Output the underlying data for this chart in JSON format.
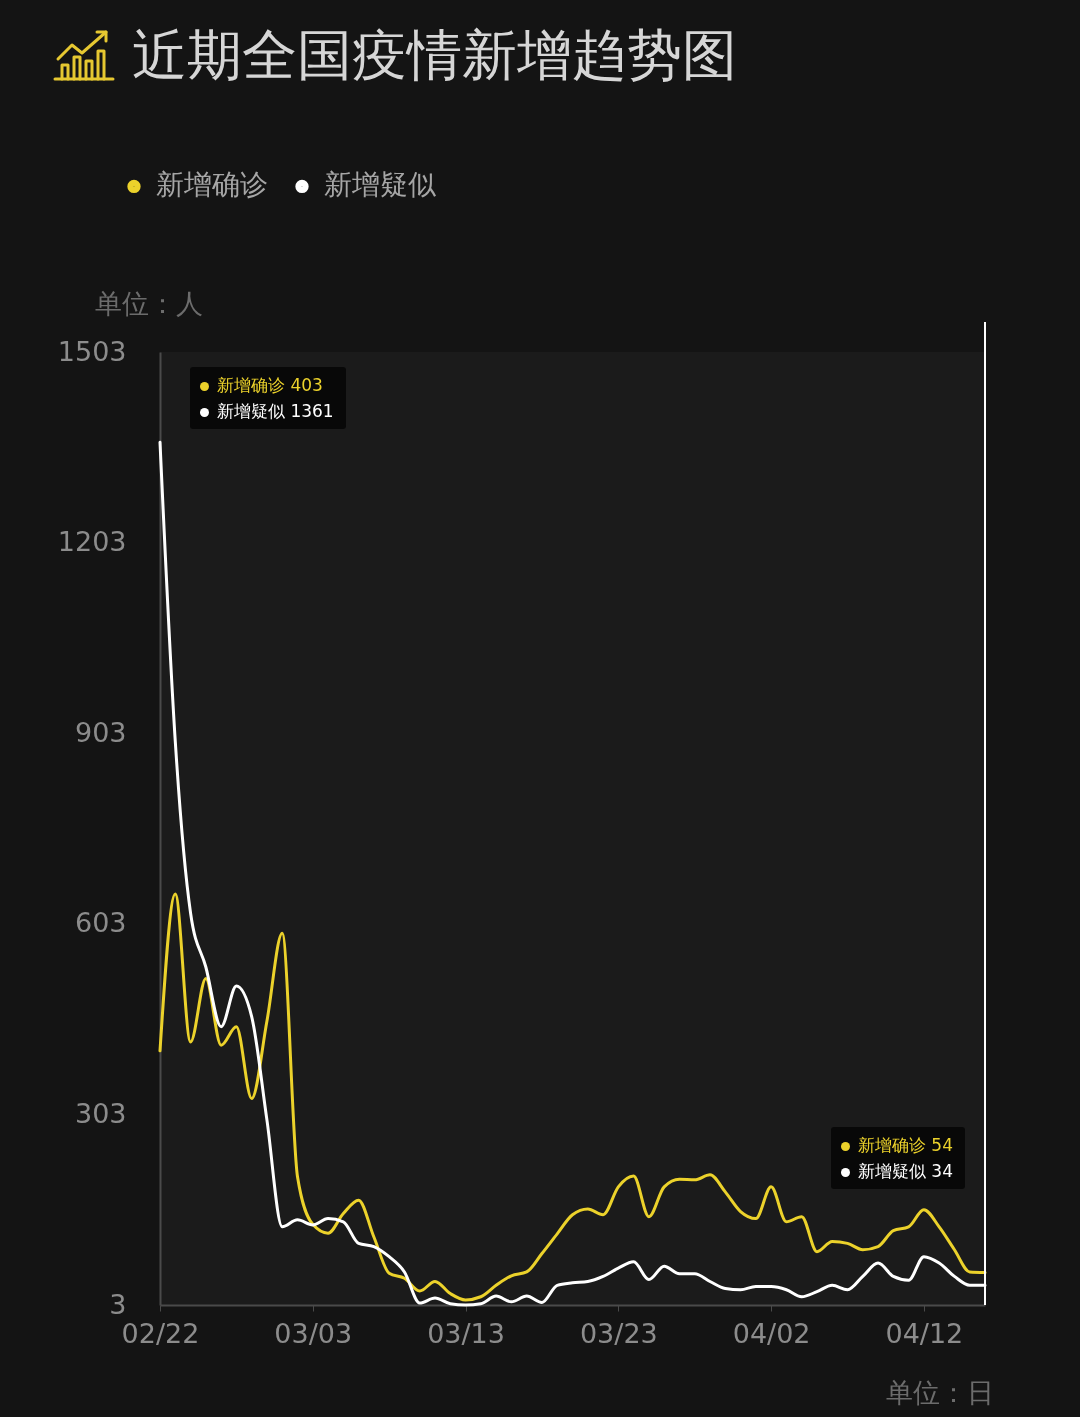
{
  "chart_data": {
    "type": "line",
    "title": "近期全国疫情新增趋势图",
    "ylabel": "单位：人",
    "xlabel": "单位：日",
    "legend": "top left",
    "x": [
      "--02-22",
      "--02-23",
      "--02-24",
      "--02-25",
      "--02-26",
      "--02-27",
      "--02-28",
      "--02-29",
      "--03-01",
      "--03-02",
      "--03-03",
      "--03-04",
      "--03-05",
      "--03-06",
      "--03-07",
      "--03-08",
      "--03-09",
      "--03-10",
      "--03-11",
      "--03-12",
      "--03-13",
      "--03-14",
      "--03-15",
      "--03-16",
      "--03-17",
      "--03-18",
      "--03-19",
      "--03-20",
      "--03-21",
      "--03-22",
      "--03-23",
      "--03-24",
      "--03-25",
      "--03-26",
      "--03-27",
      "--03-28",
      "--03-29",
      "--03-30",
      "--03-31",
      "--04-01",
      "--04-02",
      "--04-03",
      "--04-04",
      "--04-05",
      "--04-06",
      "--04-07",
      "--04-08",
      "--04-09",
      "--04-10",
      "--04-11",
      "--04-12",
      "--04-13",
      "--04-14",
      "--04-15",
      "--04-16"
    ],
    "series": [
      {
        "name": "新增确诊",
        "color": "#ecd22b",
        "values": [
          403,
          650,
          417,
          517,
          412,
          441,
          328,
          450,
          588,
          205,
          130,
          116,
          147,
          168,
          110,
          53,
          45,
          25,
          40,
          21,
          11,
          16,
          34,
          49,
          55,
          84,
          115,
          145,
          154,
          145,
          189,
          206,
          142,
          189,
          201,
          200,
          208,
          181,
          150,
          139,
          189,
          134,
          142,
          87,
          103,
          100,
          90,
          95,
          120,
          126,
          153,
          126,
          90,
          55,
          54
        ]
      },
      {
        "name": "新增疑似",
        "color": "#ffffff",
        "values": [
          1361,
          890,
          620,
          535,
          441,
          505,
          457,
          294,
          126,
          137,
          129,
          139,
          134,
          100,
          95,
          79,
          55,
          6,
          14,
          5,
          3,
          5,
          17,
          8,
          17,
          7,
          34,
          38,
          40,
          48,
          61,
          71,
          43,
          64,
          52,
          52,
          40,
          29,
          27,
          32,
          32,
          27,
          16,
          24,
          34,
          27,
          48,
          69,
          48,
          42,
          79,
          69,
          48,
          34,
          34
        ]
      }
    ],
    "xlim": [
      "--02-22",
      "--04-16"
    ],
    "xticks": [
      {
        "value": "--02-22",
        "label": "02/22"
      },
      {
        "value": "--03-03",
        "label": "03/03"
      },
      {
        "value": "--03-13",
        "label": "03/13"
      },
      {
        "value": "--03-23",
        "label": "03/23"
      },
      {
        "value": "--04-02",
        "label": "04/02"
      },
      {
        "value": "--04-12",
        "label": "04/12"
      }
    ],
    "ylim": [
      3,
      1503
    ],
    "yticks": [
      3,
      303,
      603,
      903,
      1203,
      1503
    ],
    "ref_lines": [
      {
        "axis": "x",
        "value": "--04-16",
        "color": "#ffffff"
      }
    ],
    "annotations": [
      "新增确诊 403",
      "新增疑似 1361",
      "新增确诊 54",
      "新增疑似 34"
    ]
  }
}
